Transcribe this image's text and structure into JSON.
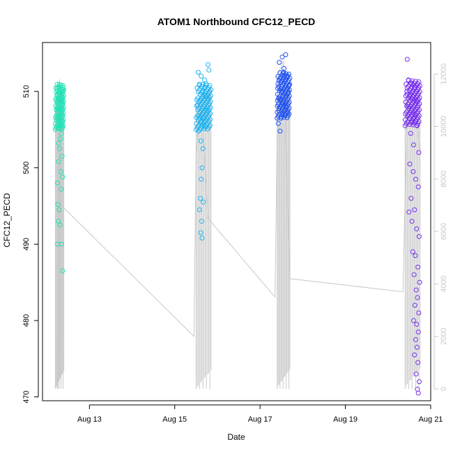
{
  "chart_data": {
    "type": "scatter",
    "title": "ATOM1 Northbound CFC12_PECD",
    "xlabel": "Date",
    "ylabel": "CFC12_PECD",
    "x_tick_labels": [
      "Aug 13",
      "Aug 15",
      "Aug 17",
      "Aug 19",
      "Aug 21"
    ],
    "x_ticks_day": [
      13,
      15,
      17,
      19,
      21
    ],
    "xlim_day": [
      11.9,
      21.0
    ],
    "ylim": [
      469.5,
      516.4
    ],
    "y_ticks": [
      470,
      480,
      490,
      500,
      510
    ],
    "y2_label": "",
    "y2_ticks": [
      0,
      2000,
      4000,
      6000,
      8000,
      10000,
      12000
    ],
    "y2lim": [
      -450,
      13200
    ],
    "y2_color": "#c8c8c8",
    "grid": false,
    "series": [
      {
        "color": "#1ee3b4",
        "marker": "open-circle",
        "x_day": [
          12.2,
          12.4
        ],
        "center": 508.0,
        "points": [
          [
            12.25,
            510.5
          ],
          [
            12.3,
            509.8
          ],
          [
            12.28,
            509.0
          ],
          [
            12.33,
            508.5
          ],
          [
            12.27,
            507.8
          ],
          [
            12.35,
            507.2
          ],
          [
            12.29,
            506.5
          ],
          [
            12.31,
            506.0
          ],
          [
            12.26,
            505.2
          ],
          [
            12.34,
            504.5
          ],
          [
            12.32,
            503.8
          ],
          [
            12.3,
            502.5
          ],
          [
            12.36,
            501.5
          ],
          [
            12.28,
            500.8
          ],
          [
            12.33,
            499.5
          ],
          [
            12.37,
            498.8
          ],
          [
            12.25,
            498.0
          ],
          [
            12.34,
            497.2
          ],
          [
            12.26,
            495.2
          ],
          [
            12.29,
            494.5
          ],
          [
            12.27,
            493.0
          ],
          [
            12.31,
            492.5
          ],
          [
            12.25,
            490.0
          ],
          [
            12.35,
            490.0
          ],
          [
            12.37,
            486.5
          ],
          [
            12.24,
            509.5
          ],
          [
            12.38,
            510.2
          ],
          [
            12.36,
            508.8
          ],
          [
            12.32,
            505.5
          ],
          [
            12.28,
            503.2
          ]
        ]
      },
      {
        "color": "#1eb4f0",
        "marker": "open-circle",
        "x_day": [
          15.5,
          15.85
        ],
        "center": 508.0,
        "points": [
          [
            15.55,
            512.5
          ],
          [
            15.62,
            512.0
          ],
          [
            15.7,
            511.5
          ],
          [
            15.78,
            513.5
          ],
          [
            15.8,
            512.8
          ],
          [
            15.58,
            510.8
          ],
          [
            15.65,
            510.0
          ],
          [
            15.72,
            509.5
          ],
          [
            15.6,
            508.8
          ],
          [
            15.68,
            508.0
          ],
          [
            15.75,
            507.5
          ],
          [
            15.57,
            506.8
          ],
          [
            15.63,
            506.0
          ],
          [
            15.7,
            505.5
          ],
          [
            15.56,
            504.8
          ],
          [
            15.61,
            503.5
          ],
          [
            15.66,
            502.5
          ],
          [
            15.64,
            500.0
          ],
          [
            15.62,
            498.5
          ],
          [
            15.6,
            496.0
          ],
          [
            15.58,
            494.5
          ],
          [
            15.63,
            493.0
          ],
          [
            15.61,
            491.5
          ],
          [
            15.64,
            490.8
          ],
          [
            15.67,
            495.5
          ],
          [
            15.73,
            511.0
          ],
          [
            15.76,
            509.0
          ],
          [
            15.54,
            508.2
          ],
          [
            15.69,
            506.5
          ],
          [
            15.59,
            505.0
          ]
        ]
      },
      {
        "color": "#1e50f0",
        "marker": "open-circle",
        "x_day": [
          17.4,
          17.7
        ],
        "center": 509.5,
        "points": [
          [
            17.45,
            513.8
          ],
          [
            17.52,
            514.5
          ],
          [
            17.6,
            514.8
          ],
          [
            17.55,
            512.5
          ],
          [
            17.48,
            511.8
          ],
          [
            17.63,
            512.0
          ],
          [
            17.42,
            511.0
          ],
          [
            17.58,
            510.5
          ],
          [
            17.5,
            510.0
          ],
          [
            17.66,
            509.8
          ],
          [
            17.46,
            509.0
          ],
          [
            17.54,
            508.5
          ],
          [
            17.61,
            508.0
          ],
          [
            17.44,
            507.5
          ],
          [
            17.57,
            507.0
          ],
          [
            17.49,
            506.5
          ],
          [
            17.43,
            505.8
          ],
          [
            17.47,
            504.8
          ],
          [
            17.68,
            510.8
          ],
          [
            17.53,
            509.3
          ],
          [
            17.59,
            511.5
          ],
          [
            17.65,
            507.2
          ],
          [
            17.41,
            508.8
          ],
          [
            17.56,
            513.0
          ]
        ]
      },
      {
        "color": "#7830f0",
        "marker": "open-circle",
        "x_day": [
          20.4,
          20.75
        ],
        "center": 508.5,
        "points": [
          [
            20.45,
            514.2
          ],
          [
            20.48,
            511.5
          ],
          [
            20.55,
            511.0
          ],
          [
            20.62,
            510.5
          ],
          [
            20.7,
            511.0
          ],
          [
            20.44,
            510.0
          ],
          [
            20.52,
            509.5
          ],
          [
            20.58,
            509.0
          ],
          [
            20.66,
            508.8
          ],
          [
            20.47,
            508.0
          ],
          [
            20.55,
            507.5
          ],
          [
            20.63,
            507.0
          ],
          [
            20.5,
            506.5
          ],
          [
            20.57,
            506.0
          ],
          [
            20.68,
            505.5
          ],
          [
            20.53,
            504.5
          ],
          [
            20.6,
            503.0
          ],
          [
            20.72,
            502.0
          ],
          [
            20.51,
            500.5
          ],
          [
            20.59,
            499.5
          ],
          [
            20.65,
            498.5
          ],
          [
            20.71,
            497.5
          ],
          [
            20.54,
            496.0
          ],
          [
            20.62,
            494.5
          ],
          [
            20.49,
            494.2
          ],
          [
            20.56,
            493.0
          ],
          [
            20.67,
            492.0
          ],
          [
            20.73,
            491.0
          ],
          [
            20.58,
            489.0
          ],
          [
            20.64,
            488.5
          ],
          [
            20.7,
            487.0
          ],
          [
            20.61,
            486.0
          ],
          [
            20.74,
            485.0
          ],
          [
            20.66,
            484.0
          ],
          [
            20.69,
            483.0
          ],
          [
            20.63,
            482.0
          ],
          [
            20.72,
            481.0
          ],
          [
            20.6,
            480.0
          ],
          [
            20.67,
            479.5
          ],
          [
            20.71,
            478.5
          ],
          [
            20.65,
            477.5
          ],
          [
            20.68,
            476.5
          ],
          [
            20.62,
            475.5
          ],
          [
            20.7,
            474.5
          ],
          [
            20.66,
            473.0
          ],
          [
            20.73,
            472.0
          ],
          [
            20.69,
            471.0
          ],
          [
            20.71,
            470.5
          ]
        ]
      }
    ],
    "line_series": {
      "color": "#c8c8c8",
      "axis": "right",
      "ylim": [
        -450,
        13200
      ],
      "x_day": [
        12.26,
        12.3,
        12.34,
        15.45,
        15.5,
        15.62,
        15.78,
        17.35,
        17.42,
        17.55,
        17.7,
        20.35,
        20.45,
        20.6,
        20.75
      ],
      "values": [
        0,
        11800,
        7000,
        2000,
        9000,
        11000,
        6500,
        3500,
        12000,
        12500,
        4200,
        3700,
        11000,
        11500,
        9000
      ]
    }
  }
}
